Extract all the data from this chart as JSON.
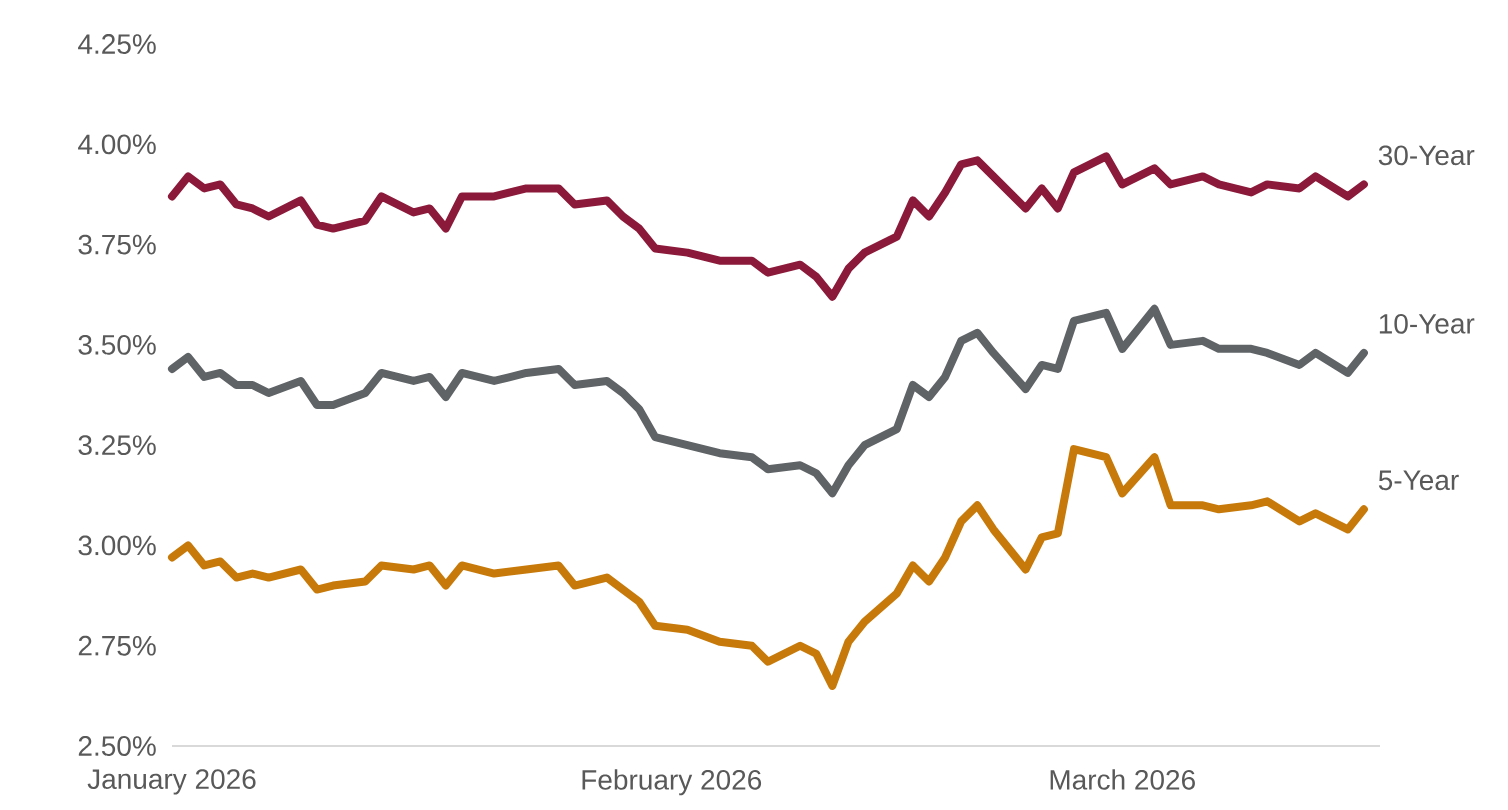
{
  "chart_data": {
    "type": "line",
    "x": [
      "2026-01-01",
      "2026-01-02",
      "2026-01-03",
      "2026-01-04",
      "2026-01-05",
      "2026-01-06",
      "2026-01-07",
      "2026-01-09",
      "2026-01-10",
      "2026-01-11",
      "2026-01-13",
      "2026-01-14",
      "2026-01-16",
      "2026-01-17",
      "2026-01-18",
      "2026-01-19",
      "2026-01-21",
      "2026-01-23",
      "2026-01-25",
      "2026-01-26",
      "2026-01-28",
      "2026-01-29",
      "2026-01-30",
      "2026-01-31",
      "2026-02-02",
      "2026-02-04",
      "2026-02-06",
      "2026-02-07",
      "2026-02-09",
      "2026-02-10",
      "2026-02-11",
      "2026-02-12",
      "2026-02-13",
      "2026-02-15",
      "2026-02-16",
      "2026-02-17",
      "2026-02-18",
      "2026-02-19",
      "2026-02-20",
      "2026-02-21",
      "2026-02-23",
      "2026-02-24",
      "2026-02-25",
      "2026-02-26",
      "2026-02-28",
      "2026-03-01",
      "2026-03-03",
      "2026-03-04",
      "2026-03-06",
      "2026-03-07",
      "2026-03-09",
      "2026-03-10",
      "2026-03-12",
      "2026-03-13",
      "2026-03-15",
      "2026-03-16"
    ],
    "series": [
      {
        "name": "30-Year",
        "color": "#8b1a3a",
        "values": [
          3.87,
          3.92,
          3.89,
          3.9,
          3.85,
          3.84,
          3.82,
          3.86,
          3.8,
          3.79,
          3.81,
          3.87,
          3.83,
          3.84,
          3.79,
          3.87,
          3.87,
          3.89,
          3.89,
          3.85,
          3.86,
          3.82,
          3.79,
          3.74,
          3.73,
          3.71,
          3.71,
          3.68,
          3.7,
          3.67,
          3.62,
          3.69,
          3.73,
          3.77,
          3.86,
          3.82,
          3.88,
          3.95,
          3.96,
          3.92,
          3.84,
          3.89,
          3.84,
          3.93,
          3.97,
          3.9,
          3.94,
          3.9,
          3.92,
          3.9,
          3.88,
          3.9,
          3.89,
          3.92,
          3.87,
          3.9
        ]
      },
      {
        "name": "10-Year",
        "color": "#5f6366",
        "values": [
          3.44,
          3.47,
          3.42,
          3.43,
          3.4,
          3.4,
          3.38,
          3.41,
          3.35,
          3.35,
          3.38,
          3.43,
          3.41,
          3.42,
          3.37,
          3.43,
          3.41,
          3.43,
          3.44,
          3.4,
          3.41,
          3.38,
          3.34,
          3.27,
          3.25,
          3.23,
          3.22,
          3.19,
          3.2,
          3.18,
          3.13,
          3.2,
          3.25,
          3.29,
          3.4,
          3.37,
          3.42,
          3.51,
          3.53,
          3.48,
          3.39,
          3.45,
          3.44,
          3.56,
          3.58,
          3.49,
          3.59,
          3.5,
          3.51,
          3.49,
          3.49,
          3.48,
          3.45,
          3.48,
          3.43,
          3.48
        ]
      },
      {
        "name": "5-Year",
        "color": "#c77a0a",
        "values": [
          2.97,
          3.0,
          2.95,
          2.96,
          2.92,
          2.93,
          2.92,
          2.94,
          2.89,
          2.9,
          2.91,
          2.95,
          2.94,
          2.95,
          2.9,
          2.95,
          2.93,
          2.94,
          2.95,
          2.9,
          2.92,
          2.89,
          2.86,
          2.8,
          2.79,
          2.76,
          2.75,
          2.71,
          2.75,
          2.73,
          2.65,
          2.76,
          2.81,
          2.88,
          2.95,
          2.91,
          2.97,
          3.06,
          3.1,
          3.04,
          2.94,
          3.02,
          3.03,
          3.24,
          3.22,
          3.13,
          3.22,
          3.1,
          3.1,
          3.09,
          3.1,
          3.11,
          3.06,
          3.08,
          3.04,
          3.09
        ]
      }
    ],
    "xlim": [
      "2026-01-01",
      "2026-03-17"
    ],
    "xticks": [
      {
        "value": "2026-01-01",
        "label": "January 2026"
      },
      {
        "value": "2026-02-01",
        "label": "February 2026"
      },
      {
        "value": "2026-03-01",
        "label": "March 2026"
      }
    ],
    "ylim": [
      2.5,
      4.25
    ],
    "yticks": [
      {
        "value": 2.5,
        "label": "2.50%"
      },
      {
        "value": 2.75,
        "label": "2.75%"
      },
      {
        "value": 3.0,
        "label": "3.00%"
      },
      {
        "value": 3.25,
        "label": "3.25%"
      },
      {
        "value": 3.5,
        "label": "3.50%"
      },
      {
        "value": 3.75,
        "label": "3.75%"
      },
      {
        "value": 4.0,
        "label": "4.00%"
      },
      {
        "value": 4.25,
        "label": "4.25%"
      }
    ],
    "grid": false,
    "legend": false,
    "marker": "none",
    "line_style": "solid"
  }
}
